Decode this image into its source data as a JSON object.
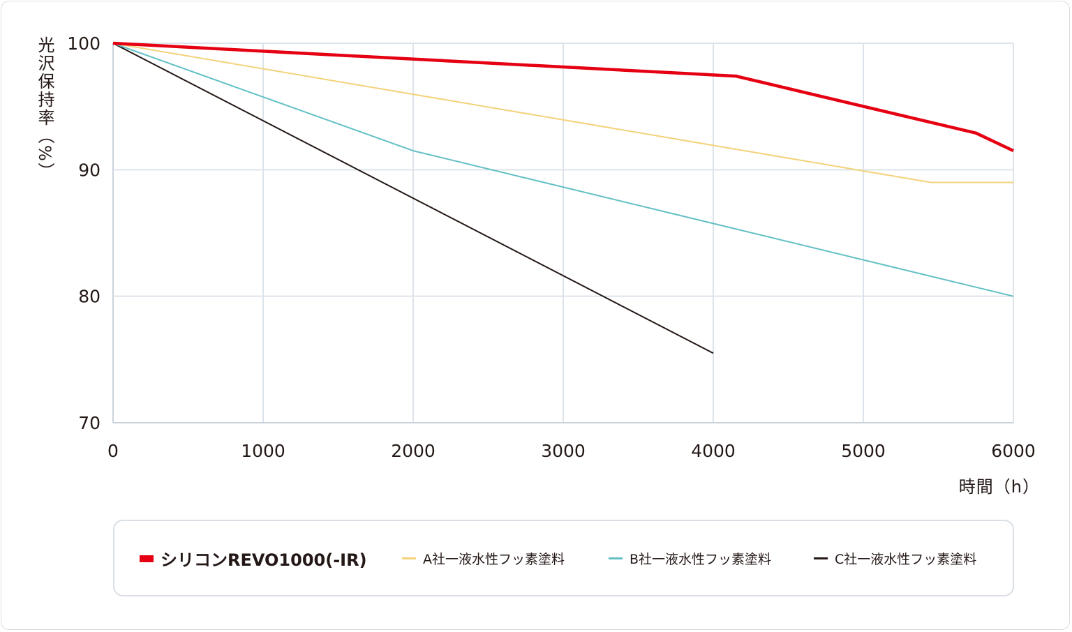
{
  "chart_data": {
    "type": "line",
    "title": "",
    "ylabel": "光沢保持率（%）",
    "xlabel": "時間（h）",
    "xlim": [
      0,
      6000
    ],
    "ylim": [
      70,
      100
    ],
    "x_ticks": [
      "0",
      "1000",
      "2000",
      "3000",
      "4000",
      "5000",
      "6000"
    ],
    "y_ticks": [
      "70",
      "80",
      "90",
      "100"
    ],
    "grid": true,
    "legend_position": "bottom",
    "series": [
      {
        "name": "シリコンREVO1000(-IR)",
        "color": "#e50012",
        "width": 4.5,
        "points": [
          [
            0,
            100
          ],
          [
            4150,
            97.4
          ],
          [
            5750,
            92.9
          ],
          [
            6000,
            91.5
          ]
        ]
      },
      {
        "name": "A社一液水性フッ素塗料",
        "color": "#f3d27a",
        "width": 2,
        "points": [
          [
            0,
            100
          ],
          [
            5450,
            89.0
          ],
          [
            6000,
            89.0
          ]
        ]
      },
      {
        "name": "B社一液水性フッ素塗料",
        "color": "#62c0c4",
        "width": 2,
        "points": [
          [
            0,
            100
          ],
          [
            2000,
            91.5
          ],
          [
            6000,
            80.0
          ]
        ]
      },
      {
        "name": "C社一液水性フッ素塗料",
        "color": "#231815",
        "width": 2,
        "points": [
          [
            0,
            100
          ],
          [
            4000,
            75.5
          ]
        ]
      }
    ]
  },
  "colors": {
    "grid": "#dce3ea",
    "axis": "#c9d2da",
    "text": "#231815"
  }
}
